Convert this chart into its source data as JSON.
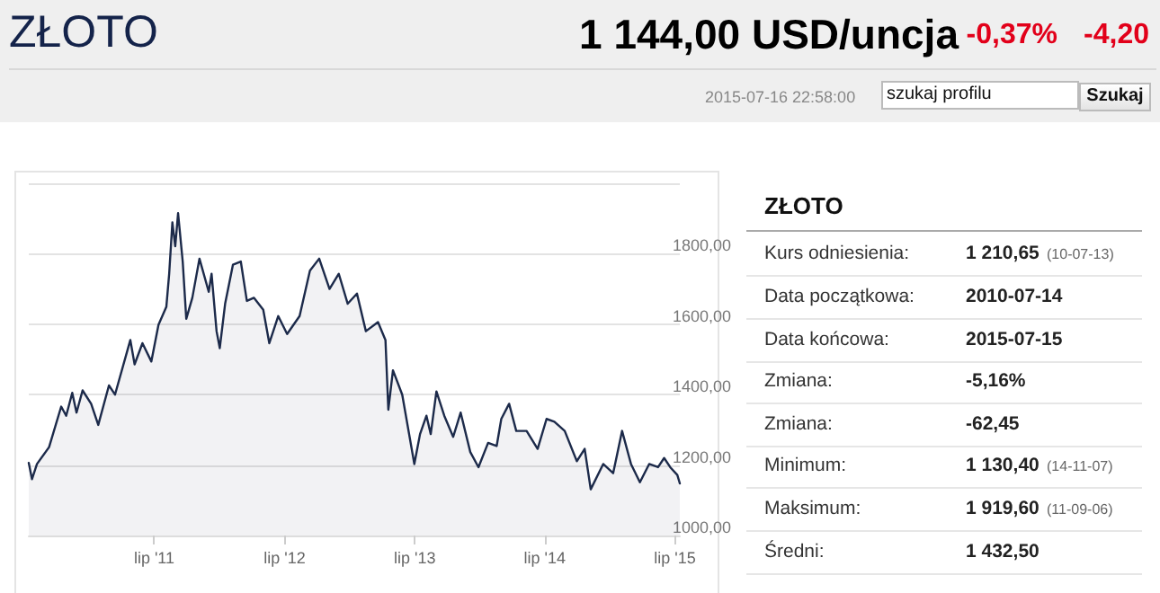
{
  "chart_data": {
    "type": "area",
    "title": "ZŁOTO",
    "annotations": [
      "1 144,00 USD/uncja",
      "-0,37%",
      "-4,20",
      "2015-07-16 22:58:00",
      "szukaj profilu",
      "Szukaj",
      "ZŁOTO",
      "Kurs odniesienia:",
      "1 210,65",
      "(10-07-13)",
      "Data początkowa:",
      "2010-07-14",
      "Data końcowa:",
      "2015-07-15",
      "Zmiana:",
      "-5,16%",
      "Zmiana:",
      "-62,45",
      "Minimum:",
      "1 130,40",
      "(14-11-07)",
      "Maksimum:",
      "1 919,60",
      "(11-09-06)",
      "Średni:",
      "1 432,50"
    ],
    "x": [
      "2010-07-14",
      "2010-07-23",
      "2010-08-06",
      "2010-09-09",
      "2010-10-13",
      "2010-10-27",
      "2010-11-13",
      "2010-11-25",
      "2010-12-12",
      "2011-01-05",
      "2011-01-25",
      "2011-02-24",
      "2011-03-13",
      "2011-04-25",
      "2011-05-07",
      "2011-05-29",
      "2011-06-23",
      "2011-07-13",
      "2011-08-04",
      "2011-08-12",
      "2011-08-21",
      "2011-08-29",
      "2011-09-06",
      "2011-09-19",
      "2011-09-29",
      "2011-10-16",
      "2011-11-05",
      "2011-12-01",
      "2011-12-09",
      "2011-12-23",
      "2012-01-01",
      "2012-01-16",
      "2012-02-07",
      "2012-02-29",
      "2012-03-17",
      "2012-04-06",
      "2012-05-02",
      "2012-05-19",
      "2012-06-13",
      "2012-07-08",
      "2012-08-12",
      "2012-09-10",
      "2012-10-06",
      "2012-11-04",
      "2012-11-30",
      "2012-12-25",
      "2013-01-20",
      "2013-02-14",
      "2013-03-20",
      "2013-04-10",
      "2013-04-18",
      "2013-05-01",
      "2013-05-27",
      "2013-06-30",
      "2013-07-16",
      "2013-08-03",
      "2013-08-15",
      "2013-08-31",
      "2013-09-22",
      "2013-10-17",
      "2013-11-07",
      "2013-12-04",
      "2013-12-27",
      "2014-01-23",
      "2014-02-16",
      "2014-03-01",
      "2014-03-23",
      "2014-04-12",
      "2014-05-11",
      "2014-06-11",
      "2014-07-06",
      "2014-07-28",
      "2014-08-26",
      "2014-09-29",
      "2014-10-21",
      "2014-11-07",
      "2014-12-12",
      "2015-01-09",
      "2015-02-03",
      "2015-02-28",
      "2015-03-25",
      "2015-04-20",
      "2015-05-15",
      "2015-06-01",
      "2015-06-18",
      "2015-07-08",
      "2015-07-15"
    ],
    "series": [
      {
        "color": "#1c2a4a",
        "values": [
          1206,
          1160,
          1203,
          1251,
          1366,
          1340,
          1405,
          1349,
          1412,
          1374,
          1314,
          1426,
          1400,
          1555,
          1486,
          1546,
          1494,
          1598,
          1649,
          1743,
          1889,
          1821,
          1915,
          1778,
          1615,
          1675,
          1786,
          1692,
          1743,
          1580,
          1532,
          1658,
          1769,
          1778,
          1666,
          1675,
          1641,
          1546,
          1623,
          1572,
          1623,
          1752,
          1786,
          1700,
          1743,
          1658,
          1687,
          1580,
          1606,
          1555,
          1357,
          1469,
          1400,
          1203,
          1288,
          1340,
          1288,
          1409,
          1340,
          1280,
          1349,
          1237,
          1194,
          1263,
          1254,
          1331,
          1374,
          1297,
          1297,
          1246,
          1331,
          1323,
          1297,
          1211,
          1246,
          1131,
          1203,
          1177,
          1297,
          1203,
          1151,
          1203,
          1194,
          1220,
          1194,
          1172,
          1148
        ]
      }
    ],
    "xlim": [
      "2010-07-14",
      "2015-07-15"
    ],
    "xticks": [
      {
        "value": "2011-07-01",
        "label": "lip '11"
      },
      {
        "value": "2012-07-01",
        "label": "lip '12"
      },
      {
        "value": "2013-07-01",
        "label": "lip '13"
      },
      {
        "value": "2014-07-01",
        "label": "lip '14"
      },
      {
        "value": "2015-07-01",
        "label": "lip '15"
      }
    ],
    "ylim": [
      1000,
      2000
    ],
    "yticks": [
      {
        "value": 1000,
        "label": "1000,00"
      },
      {
        "value": 1200,
        "label": "1200,00"
      },
      {
        "value": 1400,
        "label": "1400,00"
      },
      {
        "value": 1600,
        "label": "1600,00"
      },
      {
        "value": 1800,
        "label": "1800,00"
      },
      {
        "value": 2000,
        "label": null
      }
    ],
    "grid": "y",
    "marker": "none",
    "line_style": "solid"
  }
}
